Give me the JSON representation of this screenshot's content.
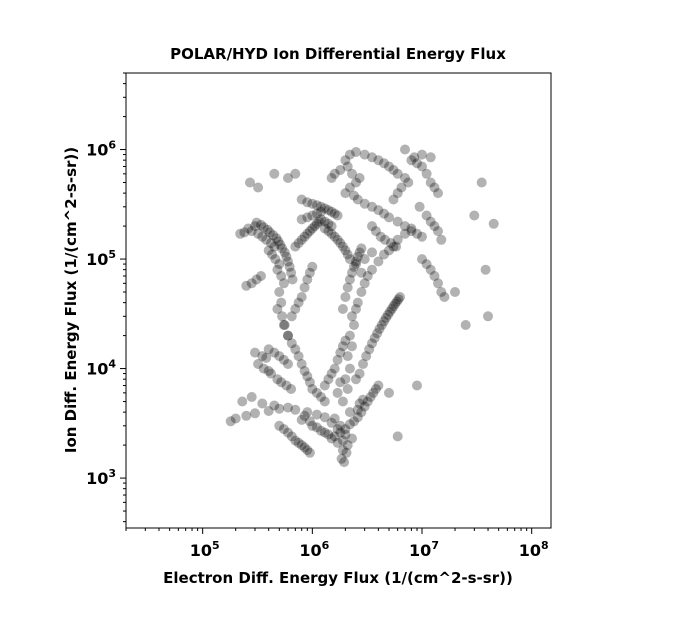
{
  "chart_data": {
    "type": "scatter",
    "title": "POLAR/HYD  Ion Differential Energy Flux",
    "xlabel": "Electron Diff. Energy Flux (1/(cm^2-s-sr))",
    "ylabel": "Ion Diff. Energy Flux (1/(cm^2-s-sr))",
    "xscale": "log",
    "yscale": "log",
    "xlim": [
      20000,
      150000000
    ],
    "ylim": [
      350,
      5000000
    ],
    "grid": false,
    "marker_color": "#000000",
    "marker_alpha": 0.3,
    "x_ticks": [
      {
        "base": "10",
        "exp": "5",
        "value": 100000
      },
      {
        "base": "10",
        "exp": "6",
        "value": 1000000
      },
      {
        "base": "10",
        "exp": "7",
        "value": 10000000
      },
      {
        "base": "10",
        "exp": "8",
        "value": 100000000
      }
    ],
    "y_ticks": [
      {
        "base": "10",
        "exp": "3",
        "value": 1000
      },
      {
        "base": "10",
        "exp": "4",
        "value": 10000
      },
      {
        "base": "10",
        "exp": "5",
        "value": 100000
      },
      {
        "base": "10",
        "exp": "6",
        "value": 1000000
      }
    ],
    "points": [
      [
        1800000,
        3000
      ],
      [
        2000000,
        2500
      ],
      [
        1600000,
        3500
      ],
      [
        2200000,
        4000
      ],
      [
        1900000,
        5000
      ],
      [
        2100000,
        6500
      ],
      [
        2000000,
        8000
      ],
      [
        2200000,
        10000
      ],
      [
        2100000,
        13000
      ],
      [
        2300000,
        16000
      ],
      [
        2200000,
        20000
      ],
      [
        2400000,
        25000
      ],
      [
        2300000,
        30000
      ],
      [
        2500000,
        35000
      ],
      [
        2600000,
        40000
      ],
      [
        2800000,
        50000
      ],
      [
        3000000,
        60000
      ],
      [
        3200000,
        70000
      ],
      [
        3500000,
        80000
      ],
      [
        4000000,
        95000
      ],
      [
        4500000,
        110000
      ],
      [
        5000000,
        120000
      ],
      [
        5500000,
        130000
      ],
      [
        6000000,
        150000
      ],
      [
        7000000,
        170000
      ],
      [
        8000000,
        190000
      ],
      [
        3000000,
        100000
      ],
      [
        3500000,
        115000
      ],
      [
        2500000,
        90000
      ],
      [
        2800000,
        75000
      ],
      [
        1900000,
        2200
      ],
      [
        1700000,
        2800
      ],
      [
        1500000,
        3200
      ],
      [
        1300000,
        3600
      ],
      [
        1100000,
        3800
      ],
      [
        900000,
        4000
      ],
      [
        700000,
        4200
      ],
      [
        500000,
        4300
      ],
      [
        400000,
        4100
      ],
      [
        300000,
        3900
      ],
      [
        250000,
        3700
      ],
      [
        200000,
        3500
      ],
      [
        180000,
        3300
      ],
      [
        230000,
        5000
      ],
      [
        280000,
        5500
      ],
      [
        350000,
        4800
      ],
      [
        450000,
        4600
      ],
      [
        600000,
        4400
      ],
      [
        800000,
        3400
      ],
      [
        1000000,
        3000
      ],
      [
        1200000,
        2700
      ],
      [
        1400000,
        2500
      ],
      [
        1600000,
        2400
      ],
      [
        1800000,
        2600
      ],
      [
        2000000,
        2800
      ],
      [
        2200000,
        3100
      ],
      [
        2400000,
        3300
      ],
      [
        2600000,
        3600
      ],
      [
        2300000,
        2300
      ],
      [
        2100000,
        2000
      ],
      [
        1900000,
        1800
      ],
      [
        1850000,
        1500
      ],
      [
        1950000,
        1400
      ],
      [
        2050000,
        1700
      ],
      [
        1700000,
        2100
      ],
      [
        1500000,
        2300
      ],
      [
        1300000,
        2600
      ],
      [
        1100000,
        2900
      ],
      [
        950000,
        3300
      ],
      [
        850000,
        3700
      ],
      [
        280000,
        180000
      ],
      [
        320000,
        170000
      ],
      [
        350000,
        160000
      ],
      [
        380000,
        150000
      ],
      [
        420000,
        140000
      ],
      [
        450000,
        130000
      ],
      [
        400000,
        120000
      ],
      [
        430000,
        110000
      ],
      [
        460000,
        100000
      ],
      [
        500000,
        90000
      ],
      [
        480000,
        80000
      ],
      [
        520000,
        70000
      ],
      [
        550000,
        60000
      ],
      [
        500000,
        50000
      ],
      [
        520000,
        40000
      ],
      [
        480000,
        35000
      ],
      [
        530000,
        30000
      ],
      [
        560000,
        25000
      ],
      [
        600000,
        20000
      ],
      [
        650000,
        17000
      ],
      [
        700000,
        15000
      ],
      [
        750000,
        13000
      ],
      [
        800000,
        11000
      ],
      [
        850000,
        9500
      ],
      [
        900000,
        8500
      ],
      [
        950000,
        7500
      ],
      [
        1000000,
        6500
      ],
      [
        1100000,
        6000
      ],
      [
        1200000,
        5500
      ],
      [
        1300000,
        5000
      ],
      [
        800000,
        350000
      ],
      [
        900000,
        330000
      ],
      [
        1000000,
        320000
      ],
      [
        1100000,
        310000
      ],
      [
        1200000,
        300000
      ],
      [
        1300000,
        290000
      ],
      [
        1400000,
        280000
      ],
      [
        1500000,
        270000
      ],
      [
        1600000,
        260000
      ],
      [
        1700000,
        250000
      ],
      [
        1200000,
        230000
      ],
      [
        1300000,
        220000
      ],
      [
        1400000,
        210000
      ],
      [
        1500000,
        200000
      ],
      [
        2000000,
        400000
      ],
      [
        2200000,
        450000
      ],
      [
        2500000,
        500000
      ],
      [
        2700000,
        550000
      ],
      [
        2300000,
        600000
      ],
      [
        2100000,
        700000
      ],
      [
        2000000,
        800000
      ],
      [
        2200000,
        900000
      ],
      [
        2500000,
        950000
      ],
      [
        3000000,
        900000
      ],
      [
        3500000,
        850000
      ],
      [
        4000000,
        800000
      ],
      [
        4500000,
        750000
      ],
      [
        5000000,
        700000
      ],
      [
        5500000,
        650000
      ],
      [
        1800000,
        650000
      ],
      [
        1600000,
        600000
      ],
      [
        1500000,
        550000
      ],
      [
        2400000,
        380000
      ],
      [
        2600000,
        350000
      ],
      [
        3000000,
        320000
      ],
      [
        3500000,
        300000
      ],
      [
        4000000,
        280000
      ],
      [
        4500000,
        260000
      ],
      [
        5000000,
        240000
      ],
      [
        6000000,
        220000
      ],
      [
        7000000,
        200000
      ],
      [
        8000000,
        180000
      ],
      [
        9000000,
        170000
      ],
      [
        10000000,
        160000
      ],
      [
        3500000,
        200000
      ],
      [
        3800000,
        180000
      ],
      [
        4200000,
        160000
      ],
      [
        4600000,
        150000
      ],
      [
        5200000,
        140000
      ],
      [
        5800000,
        130000
      ],
      [
        8000000,
        800000
      ],
      [
        9000000,
        750000
      ],
      [
        10000000,
        700000
      ],
      [
        11000000,
        600000
      ],
      [
        12000000,
        500000
      ],
      [
        13000000,
        450000
      ],
      [
        14000000,
        400000
      ],
      [
        9500000,
        300000
      ],
      [
        11000000,
        250000
      ],
      [
        12000000,
        220000
      ],
      [
        13000000,
        200000
      ],
      [
        14000000,
        180000
      ],
      [
        15000000,
        150000
      ],
      [
        10000000,
        100000
      ],
      [
        11000000,
        90000
      ],
      [
        12000000,
        80000
      ],
      [
        13000000,
        70000
      ],
      [
        14000000,
        60000
      ],
      [
        15000000,
        50000
      ],
      [
        16000000,
        45000
      ],
      [
        20000000,
        50000
      ],
      [
        25000000,
        25000
      ],
      [
        35000000,
        500000
      ],
      [
        40000000,
        30000
      ],
      [
        45000000,
        210000
      ],
      [
        38000000,
        80000
      ],
      [
        30000000,
        250000
      ],
      [
        6000000,
        2400
      ],
      [
        9000000,
        7000
      ],
      [
        5000000,
        6000
      ],
      [
        600000,
        20000
      ],
      [
        550000,
        25000
      ],
      [
        650000,
        30000
      ],
      [
        700000,
        35000
      ],
      [
        750000,
        40000
      ],
      [
        800000,
        45000
      ],
      [
        850000,
        55000
      ],
      [
        900000,
        65000
      ],
      [
        950000,
        75000
      ],
      [
        1000000,
        85000
      ],
      [
        400000,
        15000
      ],
      [
        450000,
        14000
      ],
      [
        500000,
        13000
      ],
      [
        550000,
        12000
      ],
      [
        600000,
        11000
      ],
      [
        420000,
        9000
      ],
      [
        480000,
        8000
      ],
      [
        520000,
        7500
      ],
      [
        580000,
        7000
      ],
      [
        640000,
        6500
      ],
      [
        300000,
        200000
      ],
      [
        260000,
        190000
      ],
      [
        240000,
        175000
      ],
      [
        220000,
        170000
      ],
      [
        310000,
        215000
      ],
      [
        340000,
        205000
      ],
      [
        360000,
        195000
      ],
      [
        390000,
        185000
      ],
      [
        410000,
        175000
      ],
      [
        440000,
        165000
      ],
      [
        470000,
        155000
      ],
      [
        490000,
        145000
      ],
      [
        510000,
        135000
      ],
      [
        530000,
        125000
      ],
      [
        560000,
        115000
      ],
      [
        580000,
        105000
      ],
      [
        600000,
        95000
      ],
      [
        620000,
        85000
      ],
      [
        640000,
        75000
      ],
      [
        660000,
        65000
      ],
      [
        1900000,
        35000
      ],
      [
        2000000,
        45000
      ],
      [
        2100000,
        55000
      ],
      [
        2200000,
        65000
      ],
      [
        2300000,
        75000
      ],
      [
        2400000,
        85000
      ],
      [
        2500000,
        95000
      ],
      [
        2600000,
        105000
      ],
      [
        2700000,
        115000
      ],
      [
        2800000,
        125000
      ],
      [
        1700000,
        12000
      ],
      [
        1800000,
        14000
      ],
      [
        1900000,
        16000
      ],
      [
        2000000,
        18000
      ],
      [
        1600000,
        10000
      ],
      [
        1500000,
        9000
      ],
      [
        1400000,
        8000
      ],
      [
        1300000,
        7000
      ],
      [
        1700000,
        6000
      ],
      [
        1800000,
        7500
      ],
      [
        2500000,
        8000
      ],
      [
        2700000,
        9000
      ],
      [
        2900000,
        11000
      ],
      [
        3100000,
        13000
      ],
      [
        3300000,
        15000
      ],
      [
        3500000,
        17000
      ],
      [
        3700000,
        19000
      ],
      [
        3900000,
        21000
      ],
      [
        4100000,
        23000
      ],
      [
        4300000,
        25000
      ],
      [
        4500000,
        27000
      ],
      [
        4700000,
        29000
      ],
      [
        4900000,
        31000
      ],
      [
        5100000,
        33000
      ],
      [
        5300000,
        35000
      ],
      [
        5500000,
        37000
      ],
      [
        5700000,
        39000
      ],
      [
        5900000,
        41000
      ],
      [
        6100000,
        43000
      ],
      [
        6300000,
        45000
      ],
      [
        700000,
        130000
      ],
      [
        750000,
        140000
      ],
      [
        800000,
        150000
      ],
      [
        850000,
        160000
      ],
      [
        900000,
        170000
      ],
      [
        950000,
        180000
      ],
      [
        1000000,
        190000
      ],
      [
        1050000,
        200000
      ],
      [
        1100000,
        210000
      ],
      [
        1150000,
        220000
      ],
      [
        1800000,
        140000
      ],
      [
        1900000,
        130000
      ],
      [
        2000000,
        120000
      ],
      [
        2100000,
        110000
      ],
      [
        2200000,
        100000
      ],
      [
        1700000,
        150000
      ],
      [
        1600000,
        160000
      ],
      [
        1500000,
        170000
      ],
      [
        1400000,
        180000
      ],
      [
        1300000,
        190000
      ],
      [
        500000,
        3000
      ],
      [
        550000,
        2800
      ],
      [
        600000,
        2600
      ],
      [
        650000,
        2400
      ],
      [
        700000,
        2200
      ],
      [
        750000,
        2100
      ],
      [
        800000,
        2000
      ],
      [
        850000,
        1900
      ],
      [
        900000,
        1800
      ],
      [
        950000,
        1700
      ],
      [
        3000000,
        4500
      ],
      [
        3200000,
        5000
      ],
      [
        3400000,
        5500
      ],
      [
        3600000,
        6000
      ],
      [
        3800000,
        6500
      ],
      [
        4000000,
        7000
      ],
      [
        2800000,
        4000
      ],
      [
        2600000,
        4200
      ],
      [
        2700000,
        4800
      ],
      [
        2900000,
        5200
      ],
      [
        270000,
        500000
      ],
      [
        320000,
        450000
      ],
      [
        450000,
        600000
      ],
      [
        600000,
        550000
      ],
      [
        700000,
        600000
      ],
      [
        1000000,
        250000
      ],
      [
        1100000,
        260000
      ],
      [
        1200000,
        270000
      ],
      [
        900000,
        240000
      ],
      [
        800000,
        230000
      ],
      [
        300000,
        14000
      ],
      [
        350000,
        13000
      ],
      [
        380000,
        12500
      ],
      [
        320000,
        11000
      ],
      [
        360000,
        10000
      ],
      [
        400000,
        9500
      ],
      [
        250000,
        57000
      ],
      [
        280000,
        60000
      ],
      [
        310000,
        65000
      ],
      [
        340000,
        70000
      ],
      [
        6000000,
        600000
      ],
      [
        7000000,
        550000
      ],
      [
        7500000,
        500000
      ],
      [
        6500000,
        450000
      ],
      [
        6000000,
        400000
      ],
      [
        5500000,
        350000
      ],
      [
        7000000,
        1000000
      ],
      [
        8500000,
        850000
      ],
      [
        10000000,
        900000
      ],
      [
        12000000,
        850000
      ]
    ]
  }
}
